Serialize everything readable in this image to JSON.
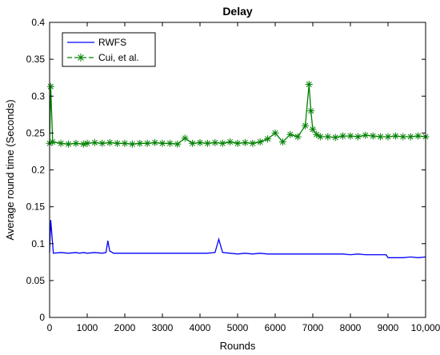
{
  "chart_data": {
    "type": "line",
    "title": "Delay",
    "xlabel": "Rounds",
    "ylabel": "Average round time (Seconds)",
    "xlim": [
      0,
      10000
    ],
    "ylim": [
      0,
      0.4
    ],
    "x_ticks": [
      0,
      1000,
      2000,
      3000,
      4000,
      5000,
      6000,
      7000,
      8000,
      9000,
      10000
    ],
    "x_tick_labels": [
      "0",
      "1000",
      "2000",
      "3000",
      "4000",
      "5000",
      "6000",
      "7000",
      "8000",
      "9000",
      "10,000"
    ],
    "y_ticks": [
      0,
      0.05,
      0.1,
      0.15,
      0.2,
      0.25,
      0.3,
      0.35,
      0.4
    ],
    "y_tick_labels": [
      "0",
      "0.05",
      "0.1",
      "0.15",
      "0.2",
      "0.25",
      "0.3",
      "0.35",
      "0.4"
    ],
    "grid": false,
    "legend_position": "top-left",
    "series": [
      {
        "name": "RWFS",
        "color": "#0000ff",
        "marker": "none",
        "x": [
          0,
          30,
          100,
          300,
          500,
          700,
          800,
          900,
          1000,
          1200,
          1400,
          1500,
          1550,
          1600,
          1700,
          1800,
          2000,
          2200,
          2400,
          2600,
          2800,
          3000,
          3200,
          3400,
          3600,
          3800,
          4000,
          4200,
          4400,
          4500,
          4600,
          4800,
          5000,
          5200,
          5400,
          5600,
          5800,
          6000,
          6200,
          6400,
          6600,
          6800,
          7000,
          7200,
          7400,
          7600,
          7800,
          8000,
          8200,
          8400,
          8600,
          8800,
          8950,
          9000,
          9200,
          9400,
          9600,
          9800,
          10000
        ],
        "y": [
          0.088,
          0.132,
          0.087,
          0.088,
          0.087,
          0.088,
          0.087,
          0.088,
          0.087,
          0.088,
          0.087,
          0.088,
          0.104,
          0.09,
          0.087,
          0.087,
          0.087,
          0.087,
          0.087,
          0.087,
          0.087,
          0.087,
          0.087,
          0.087,
          0.087,
          0.087,
          0.087,
          0.087,
          0.088,
          0.106,
          0.088,
          0.087,
          0.086,
          0.087,
          0.086,
          0.087,
          0.086,
          0.086,
          0.086,
          0.086,
          0.086,
          0.086,
          0.086,
          0.086,
          0.086,
          0.086,
          0.086,
          0.085,
          0.086,
          0.085,
          0.085,
          0.085,
          0.085,
          0.081,
          0.081,
          0.081,
          0.082,
          0.081,
          0.082
        ]
      },
      {
        "name": "Cui, et al.",
        "color": "#008000",
        "marker": "asterisk",
        "x": [
          0,
          30,
          80,
          300,
          500,
          700,
          900,
          1000,
          1200,
          1400,
          1600,
          1800,
          2000,
          2200,
          2400,
          2600,
          2800,
          3000,
          3200,
          3400,
          3600,
          3800,
          4000,
          4200,
          4400,
          4600,
          4800,
          5000,
          5200,
          5400,
          5600,
          5800,
          6000,
          6200,
          6400,
          6600,
          6800,
          6900,
          6950,
          7000,
          7100,
          7200,
          7400,
          7600,
          7800,
          8000,
          8200,
          8400,
          8600,
          8800,
          9000,
          9200,
          9400,
          9600,
          9800,
          10000
        ],
        "y": [
          0.236,
          0.313,
          0.238,
          0.236,
          0.235,
          0.236,
          0.235,
          0.236,
          0.237,
          0.236,
          0.237,
          0.236,
          0.236,
          0.235,
          0.236,
          0.236,
          0.237,
          0.236,
          0.236,
          0.235,
          0.243,
          0.236,
          0.237,
          0.236,
          0.237,
          0.236,
          0.238,
          0.236,
          0.237,
          0.236,
          0.238,
          0.242,
          0.25,
          0.238,
          0.248,
          0.245,
          0.26,
          0.316,
          0.28,
          0.255,
          0.248,
          0.245,
          0.245,
          0.244,
          0.246,
          0.246,
          0.245,
          0.247,
          0.246,
          0.245,
          0.245,
          0.246,
          0.245,
          0.245,
          0.246,
          0.245
        ]
      }
    ]
  }
}
